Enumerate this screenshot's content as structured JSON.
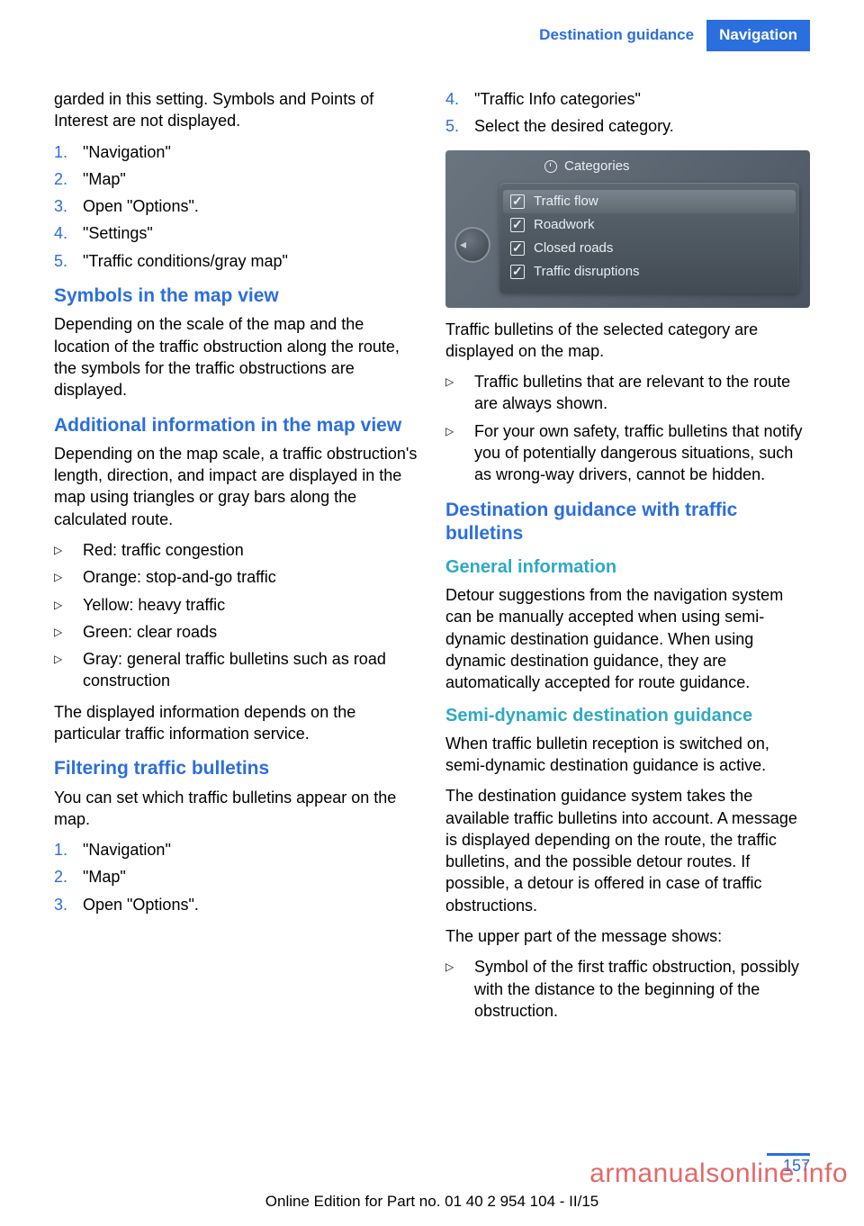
{
  "header": {
    "section": "Destination guidance",
    "chapter": "Navigation"
  },
  "col1": {
    "intro": "garded in this setting. Symbols and Points of Interest are not displayed.",
    "list1": [
      "\"Navigation\"",
      "\"Map\"",
      "Open \"Options\".",
      "\"Settings\"",
      "\"Traffic conditions/gray map\""
    ],
    "h1": "Symbols in the map view",
    "p1": "Depending on the scale of the map and the location of the traffic obstruction along the route, the symbols for the traffic obstructions are displayed.",
    "h2": "Additional information in the map view",
    "p2": "Depending on the map scale, a traffic obstruction's length, direction, and impact are displayed in the map using triangles or gray bars along the calculated route.",
    "bullets1": [
      "Red: traffic congestion",
      "Orange: stop-and-go traffic",
      "Yellow: heavy traffic",
      "Green: clear roads",
      "Gray: general traffic bulletins such as road construction"
    ],
    "p3": "The displayed information depends on the particular traffic information service.",
    "h3": "Filtering traffic bulletins",
    "p4": "You can set which traffic bulletins appear on the map.",
    "list2": [
      "\"Navigation\"",
      "\"Map\"",
      "Open \"Options\"."
    ]
  },
  "col2": {
    "list3": [
      {
        "n": "4.",
        "t": "\"Traffic Info categories\""
      },
      {
        "n": "5.",
        "t": "Select the desired category."
      }
    ],
    "screenshot": {
      "title": "Categories",
      "items": [
        {
          "label": "Traffic flow",
          "checked": true,
          "selected": true
        },
        {
          "label": "Roadwork",
          "checked": true,
          "selected": false
        },
        {
          "label": "Closed roads",
          "checked": true,
          "selected": false
        },
        {
          "label": "Traffic disruptions",
          "checked": true,
          "selected": false
        }
      ]
    },
    "p5": "Traffic bulletins of the selected category are displayed on the map.",
    "bullets2": [
      "Traffic bulletins that are relevant to the route are always shown.",
      "For your own safety, traffic bulletins that notify you of potentially dangerous situations, such as wrong-way drivers, cannot be hidden."
    ],
    "h4": "Destination guidance with traffic bulletins",
    "h5": "General information",
    "p6": "Detour suggestions from the navigation system can be manually accepted when using semi-dynamic destination guidance. When using dynamic destination guidance, they are automatically accepted for route guidance.",
    "h6": "Semi-dynamic destination guidance",
    "p7": "When traffic bulletin reception is switched on, semi-dynamic destination guidance is active.",
    "p8": "The destination guidance system takes the available traffic bulletins into account. A message is displayed depending on the route, the traffic bulletins, and the possible detour routes. If possible, a detour is offered in case of traffic obstructions.",
    "p9": "The upper part of the message shows:",
    "bullets3": [
      "Symbol of the first traffic obstruction, possibly with the distance to the beginning of the obstruction."
    ]
  },
  "page_number": "157",
  "footer": "Online Edition for Part no. 01 40 2 954 104 - II/15",
  "watermark": "armanualsonline.info"
}
